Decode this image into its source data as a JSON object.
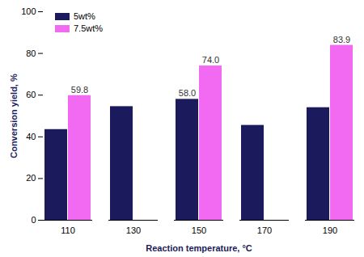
{
  "chart_data": {
    "type": "bar",
    "x_label": "Reaction temperature, °C",
    "y_label": "Conversion yield, %",
    "categories": [
      110,
      130,
      150,
      170,
      190
    ],
    "series": [
      {
        "name": "5wt%",
        "color": "#1a1a5c",
        "values": [
          43.5,
          54.5,
          58.0,
          45.5,
          54.0
        ],
        "value_labels": [
          null,
          null,
          "58.0",
          null,
          null
        ]
      },
      {
        "name": "7.5wt%",
        "color": "#f26af2",
        "values": [
          59.8,
          null,
          74.0,
          null,
          83.9
        ],
        "value_labels": [
          "59.8",
          null,
          "74.0",
          null,
          "83.9"
        ]
      }
    ],
    "ylim": [
      0,
      100
    ],
    "yticks": [
      0,
      20,
      40,
      60,
      80,
      100
    ],
    "grid": false,
    "data_labels": true,
    "legend": "upper left"
  }
}
